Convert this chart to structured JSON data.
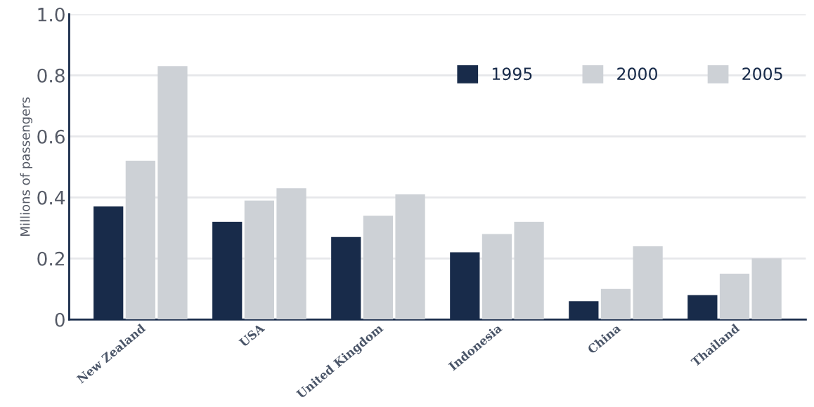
{
  "chart_data": {
    "type": "bar",
    "ylabel": "Millions of passengers",
    "categories": [
      "New Zealand",
      "USA",
      "United Kingdom",
      "Indonesia",
      "China",
      "Thailand"
    ],
    "series": [
      {
        "name": "1995",
        "color": "#182b4a",
        "values": [
          0.37,
          0.32,
          0.27,
          0.22,
          0.06,
          0.08
        ]
      },
      {
        "name": "2000",
        "color": "#cdd1d6",
        "values": [
          0.52,
          0.39,
          0.34,
          0.28,
          0.1,
          0.15
        ]
      },
      {
        "name": "2005",
        "color": "#cdd1d6",
        "values": [
          0.83,
          0.43,
          0.41,
          0.32,
          0.24,
          0.2
        ]
      }
    ],
    "ylim": [
      0,
      1.0
    ],
    "yticks": [
      0,
      0.2,
      0.4,
      0.6,
      0.8,
      {
        "value": 1,
        "label": "1.0"
      }
    ],
    "grid": "y",
    "legend": "top right"
  }
}
